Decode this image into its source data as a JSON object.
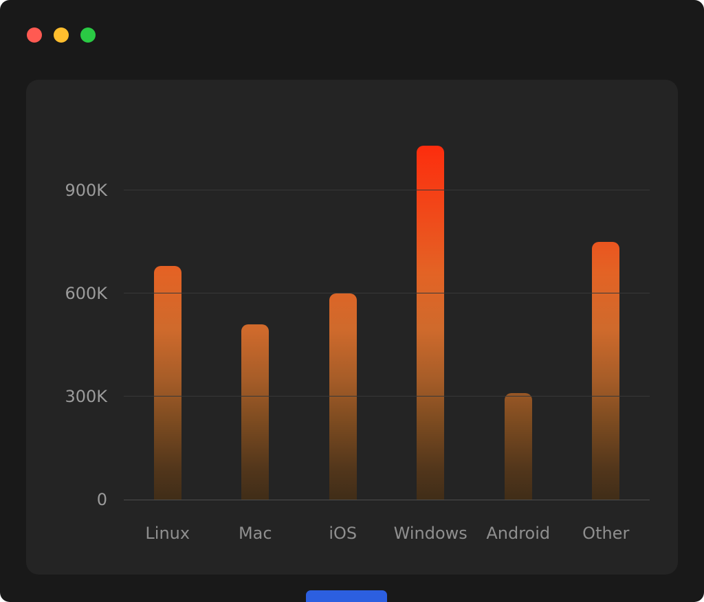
{
  "window": {
    "traffic_lights": [
      {
        "name": "close-button",
        "color": "#ff5a52"
      },
      {
        "name": "minimize-button",
        "color": "#ffbe2e"
      },
      {
        "name": "maximize-button",
        "color": "#2aca44"
      }
    ],
    "peek_color": "#2c5fe0"
  },
  "colors": {
    "screen_bg": "#191919",
    "card_bg": "#242424",
    "gridline": "#383838",
    "baseline": "#4e4e4e",
    "axis_label": "#9b9b9b",
    "category_label": "#8f8f8f",
    "bar_top": "#ff2008",
    "bar_bottom": "#402d18"
  },
  "chart_data": {
    "type": "bar",
    "title": "",
    "categories": [
      "Linux",
      "Mac",
      "iOS",
      "Windows",
      "Android",
      "Other"
    ],
    "values": [
      680,
      510,
      600,
      1030,
      310,
      750
    ],
    "unit": "K",
    "series_note": "values are in thousands (K)",
    "yticks": [
      0,
      300,
      600,
      900
    ],
    "ytick_labels": [
      "0",
      "300K",
      "600K",
      "900K"
    ],
    "ylim": [
      0,
      1100
    ],
    "xlabel": "",
    "ylabel": "",
    "grid": "horizontal",
    "legend": "none",
    "bar_style": "vertical rounded-top bars with red-to-dark-brown gradient anchored to plot bottom"
  }
}
